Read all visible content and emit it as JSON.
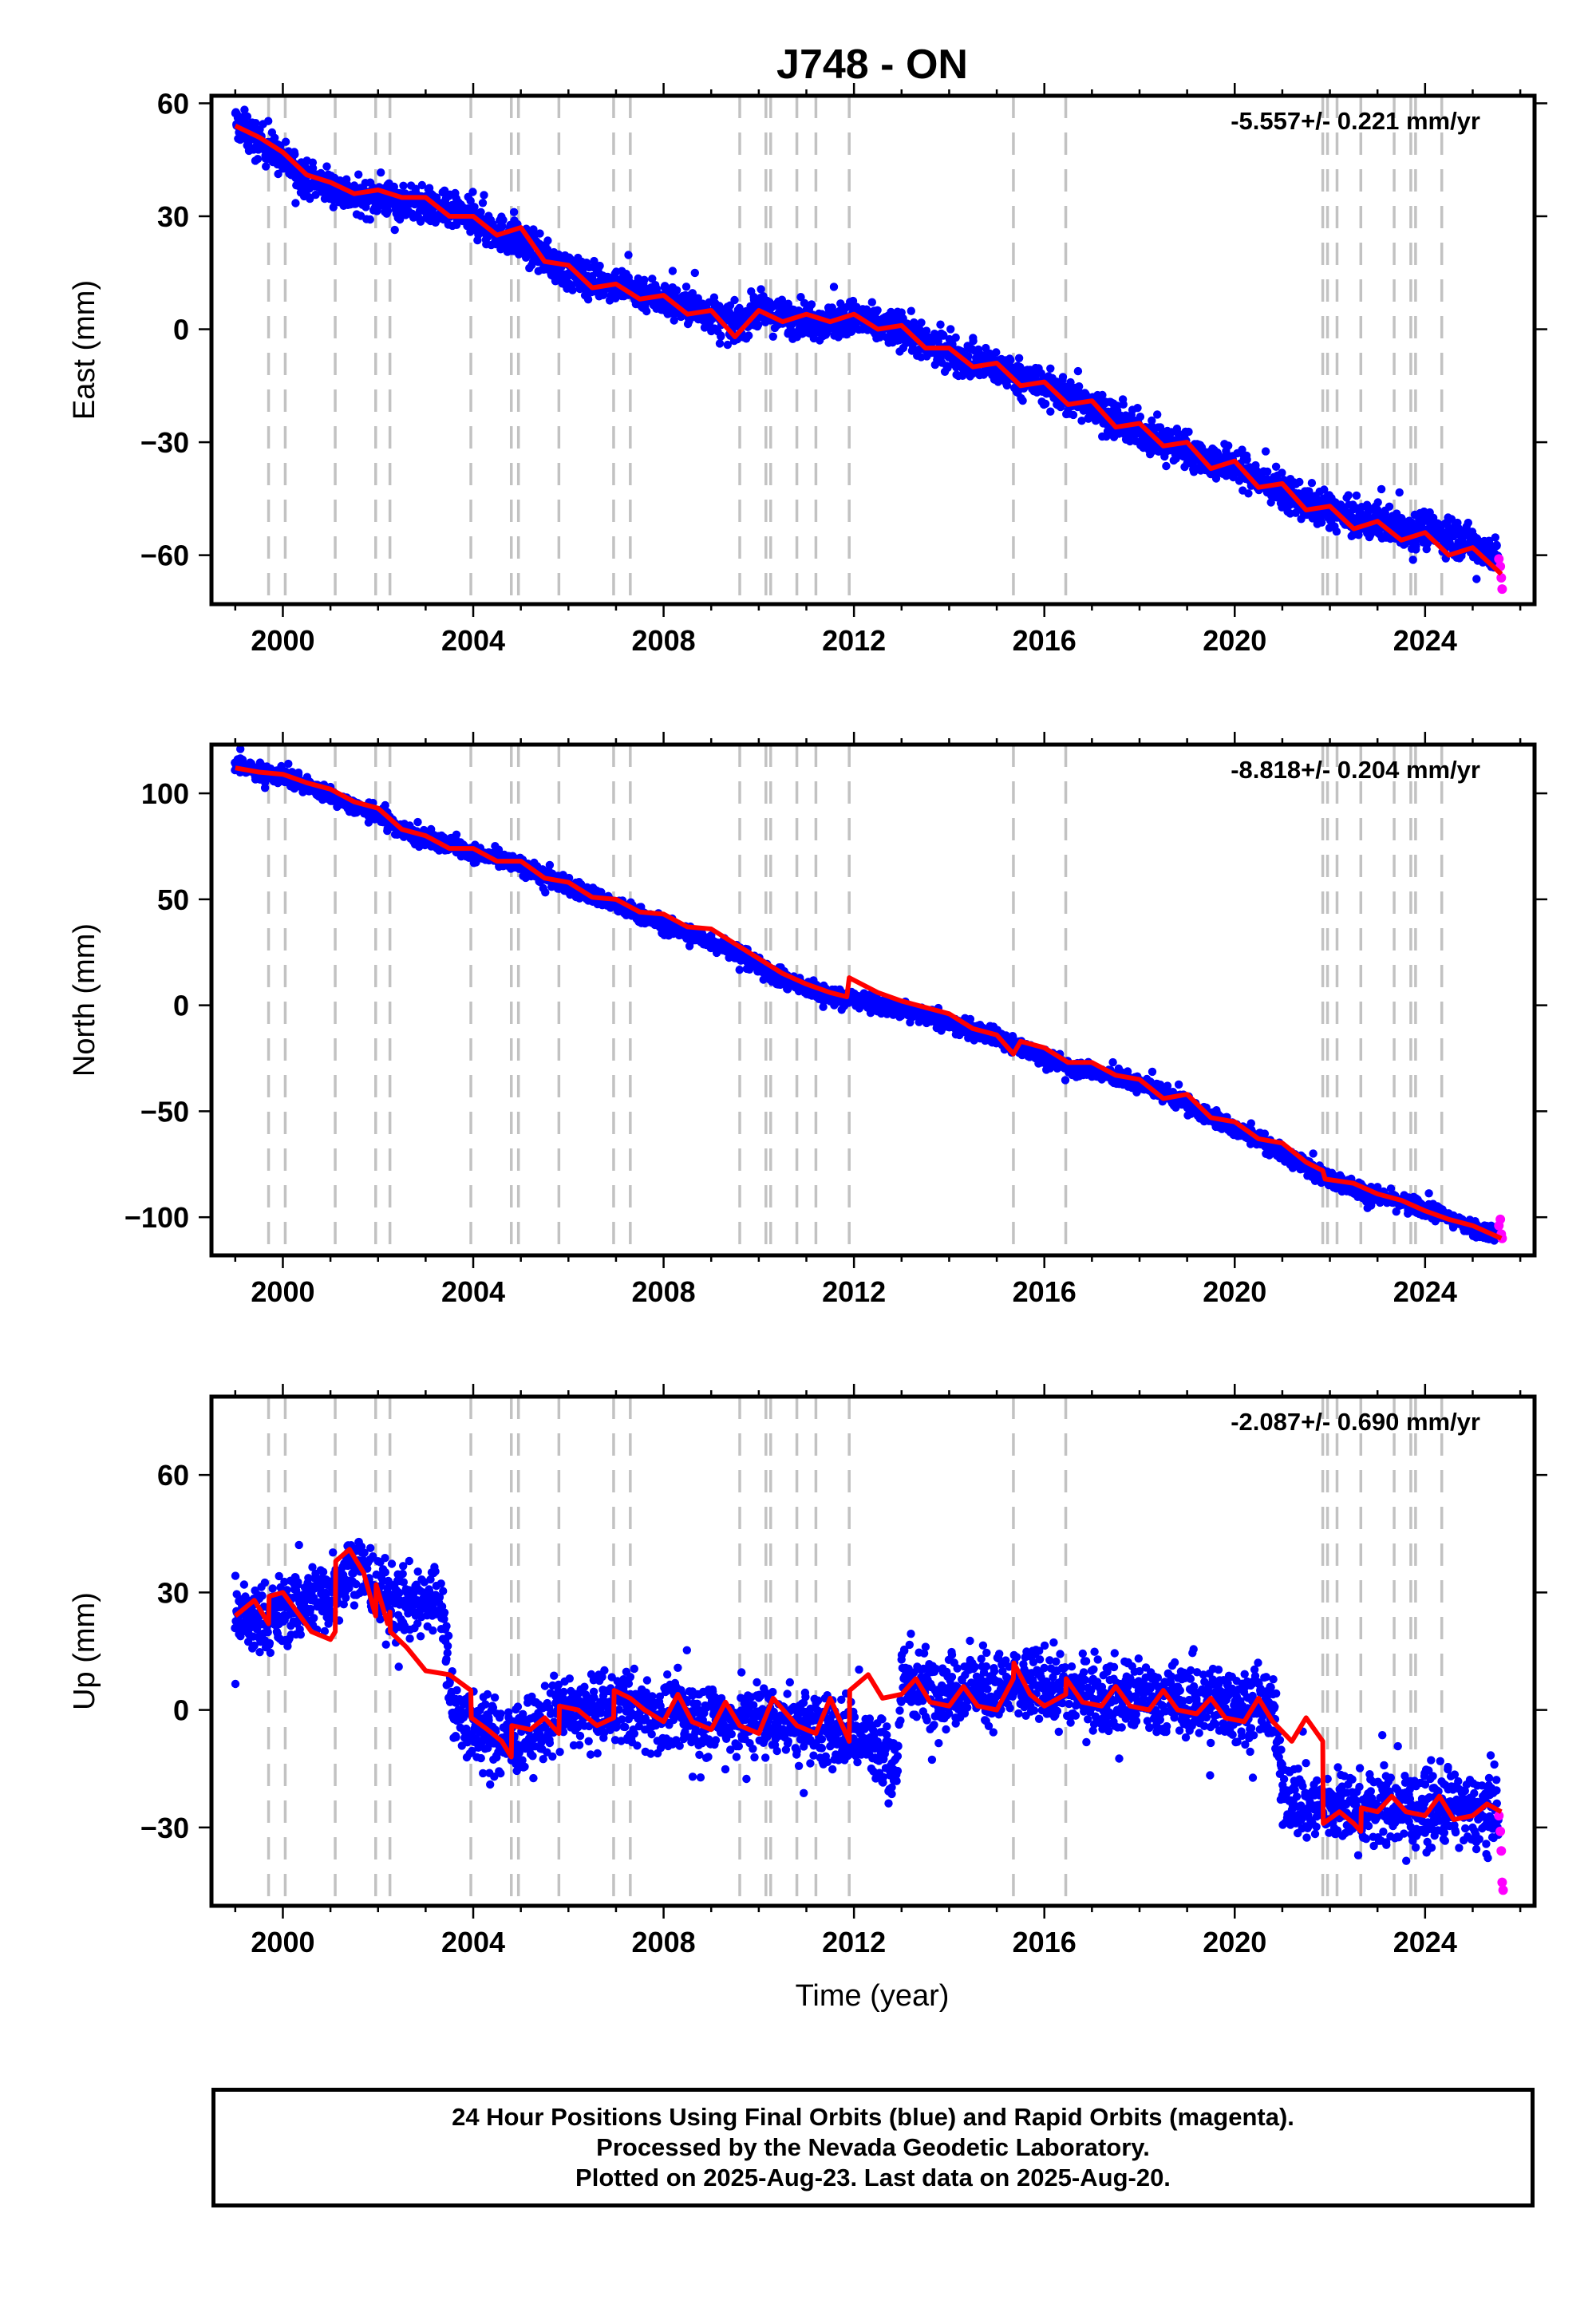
{
  "colors": {
    "final_orbits": "#0000ff",
    "rapid_orbits": "#ff00ff",
    "model_fit": "#ff0000",
    "equipment_change_lines": "#c2c2c2"
  },
  "footer": {
    "line1": "24 Hour Positions Using Final Orbits (blue) and Rapid Orbits (magenta).",
    "line2": "Processed by the Nevada Geodetic Laboratory.",
    "line3": "Plotted on 2025-Aug-23. Last data on 2025-Aug-20."
  },
  "chart_data": [
    {
      "type": "scatter",
      "title": "J748 - ON",
      "ylabel": "East (mm)",
      "xlabel": "",
      "rate_label": "-5.557+/- 0.221 mm/yr",
      "xlim": [
        1998.5,
        2026.3
      ],
      "ylim": [
        -73,
        62
      ],
      "xticks": [
        2000,
        2004,
        2008,
        2012,
        2016,
        2020,
        2024
      ],
      "yticks": [
        -60,
        -30,
        0,
        30,
        60
      ],
      "ytick_labels": [
        "−60",
        "−30",
        "0",
        "30",
        "60"
      ],
      "grid": false,
      "steps": [
        1999.7,
        2000.05,
        2001.1,
        2001.95,
        2002.25,
        2003.95,
        2004.8,
        2004.95,
        2005.8,
        2006.95,
        2007.3,
        2009.6,
        2010.15,
        2010.25,
        2010.8,
        2011.2,
        2011.9,
        2015.35,
        2016.45,
        2021.85,
        2021.95,
        2022.15,
        2022.65,
        2023.35,
        2023.7,
        2023.8,
        2024.35
      ],
      "series": [
        {
          "name": "Final Orbits",
          "kind": "points",
          "x": [
            1999.0,
            1999.5,
            2000.0,
            2000.5,
            2001.0,
            2001.5,
            2002.0,
            2002.5,
            2003.0,
            2003.5,
            2004.0,
            2004.5,
            2005.0,
            2005.5,
            2006.0,
            2006.5,
            2007.0,
            2007.5,
            2008.0,
            2008.5,
            2009.0,
            2009.5,
            2010.0,
            2010.5,
            2011.0,
            2011.5,
            2012.0,
            2012.5,
            2013.0,
            2013.5,
            2014.0,
            2014.5,
            2015.0,
            2015.5,
            2016.0,
            2016.5,
            2017.0,
            2017.5,
            2018.0,
            2018.5,
            2019.0,
            2019.5,
            2020.0,
            2020.5,
            2021.0,
            2021.5,
            2022.0,
            2022.5,
            2023.0,
            2023.5,
            2024.0,
            2024.5,
            2025.0,
            2025.5
          ],
          "y": [
            55,
            50,
            45,
            40,
            38,
            35,
            35,
            34,
            33,
            31,
            29,
            26,
            23,
            19,
            15,
            13,
            12,
            10,
            8,
            6,
            4,
            1,
            5,
            3,
            3,
            2,
            3,
            1,
            0,
            -4,
            -6,
            -9,
            -10,
            -13,
            -15,
            -18,
            -20,
            -24,
            -27,
            -30,
            -32,
            -35,
            -36,
            -40,
            -43,
            -46,
            -48,
            -51,
            -51,
            -53,
            -53,
            -55,
            -57,
            -60
          ],
          "y_spread": 6
        },
        {
          "name": "Rapid Orbits",
          "kind": "points",
          "x": [
            2025.55,
            2025.58,
            2025.6,
            2025.62
          ],
          "y": [
            -61,
            -63,
            -66,
            -69
          ]
        },
        {
          "name": "Model",
          "kind": "line",
          "x": [
            1999.0,
            1999.5,
            2000.0,
            2000.5,
            2001.0,
            2001.5,
            2002.0,
            2002.5,
            2003.0,
            2003.5,
            2004.0,
            2004.5,
            2005.0,
            2005.5,
            2006.0,
            2006.5,
            2007.0,
            2007.5,
            2008.0,
            2008.5,
            2009.0,
            2009.5,
            2010.0,
            2010.5,
            2011.0,
            2011.5,
            2012.0,
            2012.5,
            2013.0,
            2013.5,
            2014.0,
            2014.5,
            2015.0,
            2015.5,
            2016.0,
            2016.5,
            2017.0,
            2017.5,
            2018.0,
            2018.5,
            2019.0,
            2019.5,
            2020.0,
            2020.5,
            2021.0,
            2021.5,
            2022.0,
            2022.5,
            2023.0,
            2023.5,
            2024.0,
            2024.5,
            2025.0,
            2025.6
          ],
          "y": [
            54,
            51,
            47,
            41,
            39,
            36,
            37,
            35,
            35,
            30,
            30,
            25,
            27,
            18,
            17,
            11,
            12,
            8,
            9,
            4,
            5,
            -2,
            5,
            2,
            4,
            2,
            4,
            0,
            1,
            -5,
            -5,
            -10,
            -9,
            -15,
            -14,
            -20,
            -19,
            -26,
            -25,
            -31,
            -30,
            -37,
            -35,
            -42,
            -41,
            -48,
            -47,
            -53,
            -51,
            -56,
            -54,
            -60,
            -58,
            -65
          ]
        }
      ]
    },
    {
      "type": "scatter",
      "ylabel": "North (mm)",
      "xlabel": "",
      "rate_label": "-8.818+/- 0.204 mm/yr",
      "xlim": [
        1998.5,
        2026.3
      ],
      "ylim": [
        -118,
        123
      ],
      "xticks": [
        2000,
        2004,
        2008,
        2012,
        2016,
        2020,
        2024
      ],
      "yticks": [
        -100,
        -50,
        0,
        50,
        100
      ],
      "ytick_labels": [
        "−100",
        "−50",
        "0",
        "50",
        "100"
      ],
      "grid": false,
      "steps": [
        1999.7,
        2000.05,
        2001.1,
        2001.95,
        2002.25,
        2003.95,
        2004.8,
        2004.95,
        2005.8,
        2006.95,
        2007.3,
        2009.6,
        2010.15,
        2010.25,
        2010.8,
        2011.2,
        2011.9,
        2015.35,
        2016.45,
        2021.85,
        2021.95,
        2022.15,
        2022.65,
        2023.35,
        2023.7,
        2023.8,
        2024.35
      ],
      "series": [
        {
          "name": "Final Orbits",
          "kind": "points",
          "x": [
            1999.0,
            1999.5,
            2000.0,
            2000.5,
            2001.0,
            2001.5,
            2002.0,
            2002.5,
            2003.0,
            2003.5,
            2004.0,
            2004.5,
            2005.0,
            2005.5,
            2006.0,
            2006.5,
            2007.0,
            2007.5,
            2008.0,
            2008.5,
            2009.0,
            2009.5,
            2010.0,
            2010.5,
            2011.0,
            2011.5,
            2012.0,
            2012.5,
            2013.0,
            2013.5,
            2014.0,
            2014.5,
            2015.0,
            2015.5,
            2016.0,
            2016.5,
            2017.0,
            2017.5,
            2018.0,
            2018.5,
            2019.0,
            2019.5,
            2020.0,
            2020.5,
            2021.0,
            2021.5,
            2022.0,
            2022.5,
            2023.0,
            2023.5,
            2024.0,
            2024.5,
            2025.0,
            2025.5
          ],
          "y": [
            114,
            110,
            108,
            104,
            99,
            94,
            90,
            83,
            78,
            76,
            72,
            69,
            66,
            61,
            56,
            52,
            47,
            43,
            38,
            34,
            30,
            26,
            18,
            12,
            8,
            5,
            3,
            0,
            -2,
            -5,
            -9,
            -12,
            -15,
            -20,
            -25,
            -28,
            -31,
            -34,
            -37,
            -41,
            -47,
            -53,
            -58,
            -63,
            -70,
            -76,
            -82,
            -86,
            -90,
            -93,
            -96,
            -100,
            -105,
            -108
          ],
          "y_spread": 5
        },
        {
          "name": "Rapid Orbits",
          "kind": "points",
          "x": [
            2025.55,
            2025.58,
            2025.6,
            2025.62
          ],
          "y": [
            -104,
            -101,
            -108,
            -110
          ]
        },
        {
          "name": "Model",
          "kind": "line",
          "x": [
            1999.0,
            1999.5,
            2000.0,
            2000.5,
            2001.0,
            2001.5,
            2002.0,
            2002.5,
            2003.0,
            2003.5,
            2004.0,
            2004.5,
            2005.0,
            2005.5,
            2006.0,
            2006.5,
            2007.0,
            2007.5,
            2008.0,
            2008.5,
            2009.0,
            2009.5,
            2010.0,
            2010.5,
            2011.0,
            2011.5,
            2011.85,
            2011.9,
            2012.5,
            2013.0,
            2013.5,
            2014.0,
            2014.5,
            2015.0,
            2015.35,
            2015.5,
            2016.0,
            2016.5,
            2017.0,
            2017.5,
            2018.0,
            2018.5,
            2019.0,
            2019.5,
            2020.0,
            2020.5,
            2021.0,
            2021.5,
            2021.85,
            2021.9,
            2022.5,
            2023.0,
            2023.5,
            2024.0,
            2024.5,
            2025.0,
            2025.6
          ],
          "y": [
            112,
            110,
            109,
            105,
            102,
            96,
            93,
            83,
            80,
            74,
            74,
            68,
            68,
            60,
            58,
            51,
            50,
            44,
            43,
            37,
            36,
            29,
            22,
            15,
            10,
            6,
            4,
            13,
            6,
            2,
            -1,
            -4,
            -11,
            -14,
            -23,
            -17,
            -20,
            -27,
            -27,
            -33,
            -35,
            -44,
            -42,
            -53,
            -55,
            -63,
            -65,
            -74,
            -78,
            -82,
            -84,
            -89,
            -92,
            -97,
            -101,
            -104,
            -110
          ]
        }
      ]
    },
    {
      "type": "scatter",
      "ylabel": "Up (mm)",
      "xlabel": "Time (year)",
      "rate_label": "-2.087+/- 0.690 mm/yr",
      "xlim": [
        1998.5,
        2026.3
      ],
      "ylim": [
        -50,
        80
      ],
      "xticks": [
        2000,
        2004,
        2008,
        2012,
        2016,
        2020,
        2024
      ],
      "yticks": [
        -30,
        0,
        30,
        60
      ],
      "ytick_labels": [
        "−30",
        "0",
        "30",
        "60"
      ],
      "grid": false,
      "steps": [
        1999.7,
        2000.05,
        2001.1,
        2001.95,
        2002.25,
        2003.95,
        2004.8,
        2004.95,
        2005.8,
        2006.95,
        2007.3,
        2009.6,
        2010.15,
        2010.25,
        2010.8,
        2011.2,
        2011.9,
        2015.35,
        2016.45,
        2021.85,
        2021.95,
        2022.15,
        2022.65,
        2023.35,
        2023.7,
        2023.8,
        2024.35
      ],
      "series": [
        {
          "name": "Final Orbits",
          "kind": "points",
          "x": [
            1999.0,
            1999.5,
            2000.0,
            2000.5,
            2001.0,
            2001.5,
            2002.0,
            2002.5,
            2003.0,
            2003.3,
            2003.6,
            2004.0,
            2004.5,
            2005.0,
            2005.5,
            2006.0,
            2006.5,
            2007.0,
            2007.5,
            2008.0,
            2008.5,
            2009.0,
            2009.5,
            2010.0,
            2010.5,
            2011.0,
            2011.5,
            2012.0,
            2012.5,
            2012.9,
            2013.0,
            2013.5,
            2014.0,
            2014.5,
            2015.0,
            2015.5,
            2016.0,
            2016.5,
            2017.0,
            2017.5,
            2018.0,
            2018.5,
            2019.0,
            2019.5,
            2020.0,
            2020.5,
            2020.8,
            2021.0,
            2021.5,
            2022.0,
            2022.5,
            2023.0,
            2023.5,
            2024.0,
            2024.5,
            2025.0,
            2025.5
          ],
          "y": [
            25,
            22,
            25,
            28,
            30,
            38,
            30,
            27,
            28,
            29,
            0,
            -5,
            -7,
            -8,
            -3,
            0,
            -1,
            1,
            0,
            -2,
            -1,
            -2,
            -3,
            -2,
            -3,
            -4,
            -5,
            -6,
            -10,
            -15,
            8,
            6,
            5,
            6,
            5,
            6,
            6,
            5,
            4,
            4,
            3,
            3,
            2,
            2,
            1,
            2,
            0,
            -20,
            -25,
            -24,
            -26,
            -25,
            -25,
            -26,
            -24,
            -27,
            -24
          ],
          "y_spread": 12
        },
        {
          "name": "Rapid Orbits",
          "kind": "points",
          "x": [
            2025.55,
            2025.58,
            2025.6,
            2025.62,
            2025.64
          ],
          "y": [
            -27,
            -31,
            -36,
            -44,
            -46
          ]
        },
        {
          "name": "Model",
          "kind": "line",
          "x": [
            1999.0,
            1999.4,
            1999.7,
            1999.71,
            2000.0,
            2000.3,
            2000.6,
            2001.0,
            2001.1,
            2001.11,
            2001.4,
            2001.7,
            2001.95,
            2001.96,
            2002.2,
            2002.25,
            2002.26,
            2002.6,
            2003.0,
            2003.5,
            2003.95,
            2003.96,
            2004.3,
            2004.6,
            2004.8,
            2004.81,
            2005.2,
            2005.5,
            2005.8,
            2005.81,
            2006.2,
            2006.6,
            2006.95,
            2006.96,
            2007.3,
            2007.6,
            2008.0,
            2008.3,
            2008.6,
            2009.0,
            2009.3,
            2009.6,
            2010.0,
            2010.3,
            2010.8,
            2011.2,
            2011.5,
            2011.9,
            2011.91,
            2012.3,
            2012.6,
            2013.0,
            2013.3,
            2013.6,
            2014.0,
            2014.3,
            2014.6,
            2015.0,
            2015.35,
            2015.36,
            2015.7,
            2016.0,
            2016.45,
            2016.46,
            2016.8,
            2017.2,
            2017.5,
            2017.8,
            2018.2,
            2018.5,
            2018.8,
            2019.2,
            2019.5,
            2019.8,
            2020.2,
            2020.5,
            2020.8,
            2021.2,
            2021.5,
            2021.85,
            2021.86,
            2022.2,
            2022.5,
            2022.65,
            2022.66,
            2023.0,
            2023.3,
            2023.6,
            2024.0,
            2024.3,
            2024.6,
            2025.0,
            2025.3,
            2025.6
          ],
          "y": [
            24,
            28,
            22,
            29,
            30,
            25,
            20,
            18,
            20,
            38,
            41,
            35,
            24,
            32,
            22,
            25,
            20,
            16,
            10,
            9,
            5,
            -2,
            -5,
            -8,
            -12,
            -4,
            -5,
            -2,
            -6,
            1,
            0,
            -4,
            -2,
            5,
            3,
            0,
            -3,
            4,
            -3,
            -5,
            2,
            -4,
            -6,
            3,
            -4,
            -6,
            3,
            -8,
            5,
            9,
            3,
            4,
            8,
            2,
            1,
            6,
            1,
            0,
            8,
            12,
            4,
            1,
            4,
            8,
            2,
            1,
            6,
            1,
            0,
            5,
            0,
            -1,
            3,
            -2,
            -3,
            3,
            -3,
            -8,
            -2,
            -8,
            -29,
            -26,
            -29,
            -31,
            -25,
            -26,
            -22,
            -26,
            -27,
            -22,
            -28,
            -27,
            -24,
            -26
          ]
        }
      ]
    }
  ]
}
